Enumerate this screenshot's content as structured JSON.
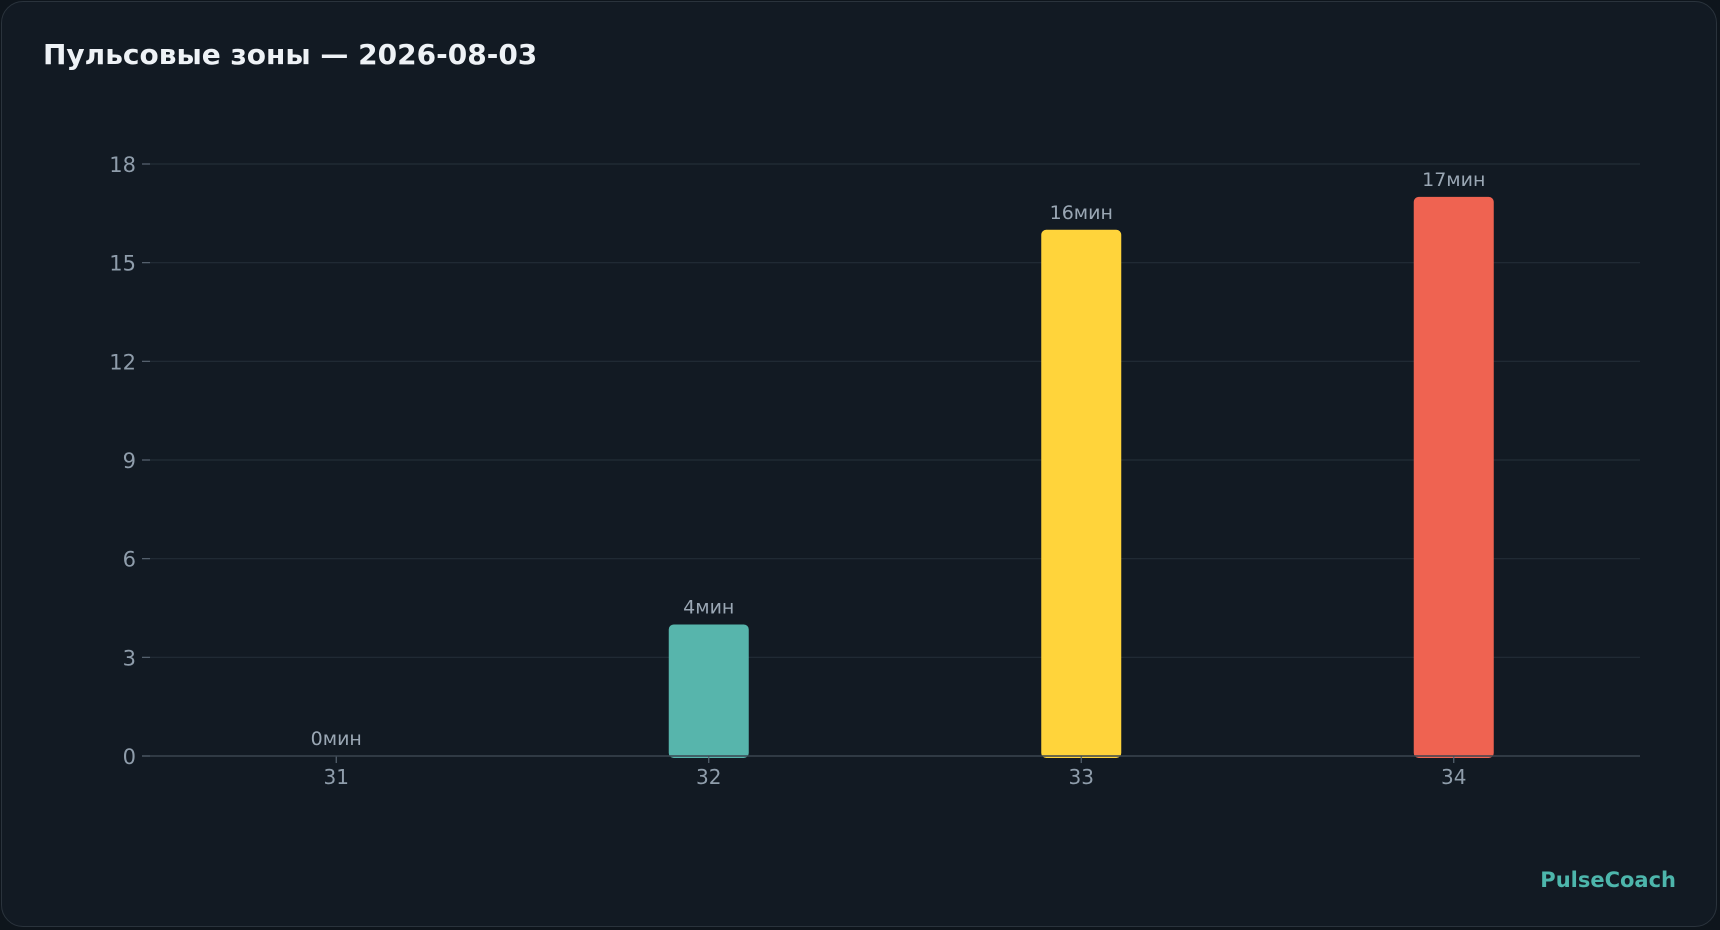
{
  "title": "Пульсовые зоны — 2026-08-03",
  "brand": "PulseCoach",
  "chart_data": {
    "type": "bar",
    "categories": [
      "31",
      "32",
      "33",
      "34"
    ],
    "values": [
      0,
      4,
      16,
      17
    ],
    "value_suffix": "мин",
    "colors": [
      "#4db6ac",
      "#57b5ac",
      "#ffd43b",
      "#ef6351"
    ],
    "ylim": [
      0,
      18
    ],
    "yticks": [
      0,
      3,
      6,
      9,
      12,
      15,
      18
    ],
    "grid": true,
    "xlabel": "",
    "ylabel": ""
  }
}
